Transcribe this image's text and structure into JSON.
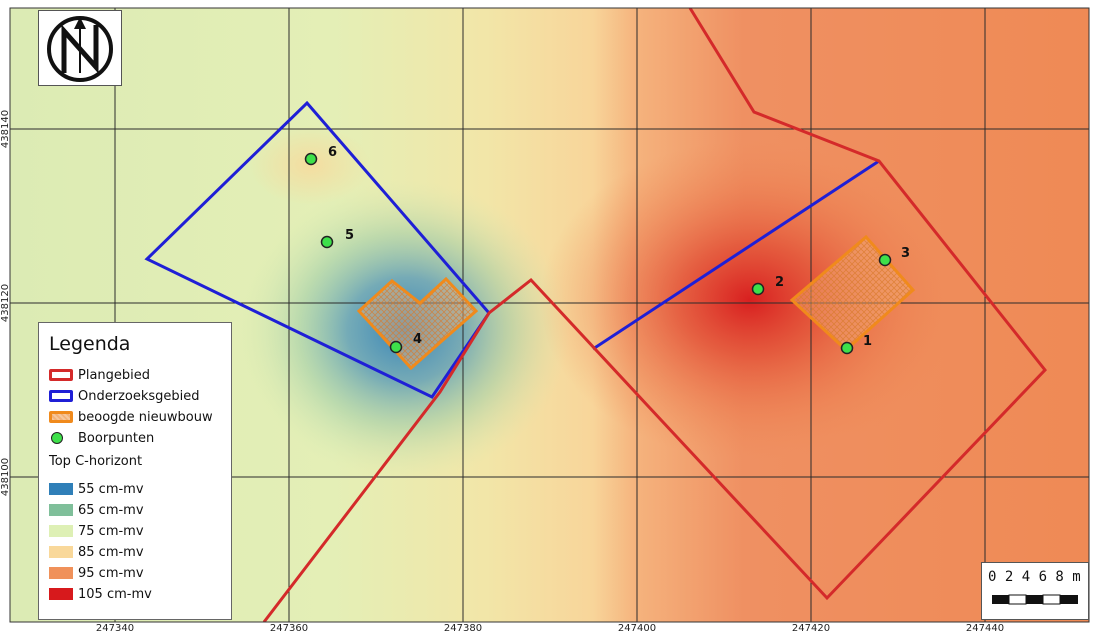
{
  "map": {
    "x_ticks": [
      "247340",
      "247360",
      "247380",
      "247400",
      "247420",
      "247440"
    ],
    "y_ticks": [
      "438140",
      "438120",
      "438100"
    ],
    "points": [
      {
        "id": "1",
        "label": "1"
      },
      {
        "id": "2",
        "label": "2"
      },
      {
        "id": "3",
        "label": "3"
      },
      {
        "id": "4",
        "label": "4"
      },
      {
        "id": "5",
        "label": "5"
      },
      {
        "id": "6",
        "label": "6"
      }
    ]
  },
  "legend": {
    "title": "Legenda",
    "items": [
      {
        "label": "Plangebied",
        "color": "#d42a2a"
      },
      {
        "label": "Onderzoeksgebied",
        "color": "#1f1fd6"
      },
      {
        "label": "beoogde nieuwbouw",
        "color": "#f08a1c"
      },
      {
        "label": "Boorpunten",
        "color": "#3ee04a"
      }
    ],
    "subtitle": "Top C-horizont",
    "classes": [
      {
        "label": "55 cm-mv",
        "color": "#2f7fb8"
      },
      {
        "label": "65 cm-mv",
        "color": "#7fbf9a"
      },
      {
        "label": "75 cm-mv",
        "color": "#def0b5"
      },
      {
        "label": "85 cm-mv",
        "color": "#f9d89a"
      },
      {
        "label": "95 cm-mv",
        "color": "#f0915a"
      },
      {
        "label": "105 cm-mv",
        "color": "#d7191c"
      }
    ]
  },
  "scalebar": {
    "labels": "0 2 4 6 8 m"
  }
}
